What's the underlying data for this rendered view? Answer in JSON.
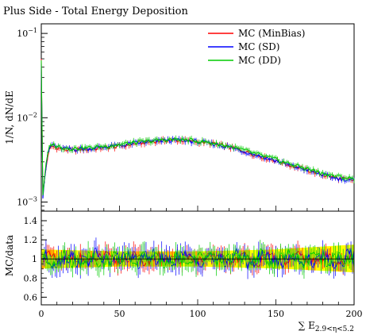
{
  "chart_data": {
    "type": "line",
    "title": "Plus Side - Total Energy Deposition",
    "xlabel": "∑ E",
    "xlabel_subscript": "2.9<η<5.2",
    "xlim": [
      0,
      200
    ],
    "x_ticks": [
      0,
      50,
      100,
      150,
      200
    ],
    "x_ticklabels": [
      "0",
      "50",
      "100",
      "150",
      "200"
    ],
    "main_panel": {
      "ylabel": "1/N, dN/dE",
      "yscale": "log",
      "ylim": [
        0.00078,
        0.13
      ],
      "y_ticks": [
        0.001,
        0.01,
        0.1
      ],
      "y_ticklabel_base": "10",
      "y_ticklabel_exponents": [
        "−3",
        "−2",
        "−1"
      ],
      "legend_position": "top-right",
      "x": [
        0,
        1,
        2,
        3,
        4,
        5,
        6,
        7,
        8,
        10,
        12,
        15,
        20,
        25,
        30,
        40,
        50,
        60,
        70,
        80,
        90,
        100,
        110,
        120,
        130,
        140,
        150,
        160,
        170,
        180,
        190,
        200
      ],
      "series": [
        {
          "name": "MC (MinBias)",
          "color": "#ff0000",
          "values": [
            0.05,
            0.0012,
            0.0018,
            0.0025,
            0.0034,
            0.004,
            0.0044,
            0.0046,
            0.0045,
            0.0044,
            0.0043,
            0.0042,
            0.0041,
            0.0042,
            0.0042,
            0.0044,
            0.0046,
            0.0049,
            0.0052,
            0.0054,
            0.0054,
            0.0052,
            0.0049,
            0.0045,
            0.004,
            0.0035,
            0.0031,
            0.0027,
            0.0024,
            0.0021,
            0.0019,
            0.0018
          ]
        },
        {
          "name": "MC (SD)",
          "color": "#0000ff",
          "values": [
            0.045,
            0.0011,
            0.0018,
            0.0026,
            0.0035,
            0.0042,
            0.0046,
            0.0048,
            0.0047,
            0.0045,
            0.0044,
            0.0043,
            0.0042,
            0.0043,
            0.0043,
            0.0045,
            0.0047,
            0.005,
            0.0052,
            0.0054,
            0.0054,
            0.0052,
            0.0049,
            0.0045,
            0.004,
            0.0035,
            0.0031,
            0.0027,
            0.0024,
            0.0021,
            0.0019,
            0.0018
          ]
        },
        {
          "name": "MC (DD)",
          "color": "#00cc00",
          "values": [
            0.048,
            0.0012,
            0.0019,
            0.0027,
            0.0036,
            0.0043,
            0.0047,
            0.0049,
            0.0048,
            0.0046,
            0.0045,
            0.0044,
            0.0043,
            0.0044,
            0.0044,
            0.0046,
            0.0048,
            0.0051,
            0.0053,
            0.0055,
            0.0055,
            0.0053,
            0.005,
            0.0046,
            0.0041,
            0.0036,
            0.0032,
            0.0028,
            0.0025,
            0.0022,
            0.002,
            0.0019
          ]
        }
      ]
    },
    "ratio_panel": {
      "ylabel": "MC/data",
      "ylim": [
        0.52,
        1.5
      ],
      "y_ticks": [
        0.6,
        0.8,
        1.0,
        1.2,
        1.4
      ],
      "y_ticklabels": [
        "0.6",
        "0.8",
        "1",
        "1.2",
        "1.4"
      ],
      "band_color": "#ffff00",
      "band_x": [
        0,
        50,
        100,
        150,
        200
      ],
      "band_low": [
        0.9,
        0.92,
        0.92,
        0.9,
        0.86
      ],
      "band_high": [
        1.1,
        1.08,
        1.08,
        1.1,
        1.15
      ],
      "reference_line": 1.0,
      "series": [
        {
          "name": "MC (MinBias)",
          "color": "#ff0000",
          "amplitude": 0.06,
          "phase": 0.3
        },
        {
          "name": "MC (SD)",
          "color": "#0000ff",
          "amplitude": 0.09,
          "phase": 1.7
        },
        {
          "name": "MC (DD)",
          "color": "#00cc00",
          "amplitude": 0.08,
          "phase": 3.1
        }
      ]
    }
  }
}
